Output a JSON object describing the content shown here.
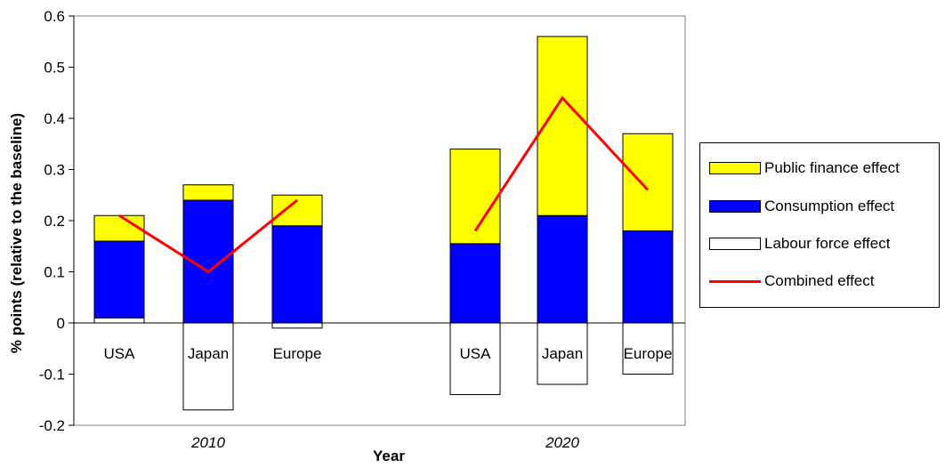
{
  "chart_data": {
    "type": "bar",
    "ylabel": "% points (relative to the baseline)",
    "xlabel": "Year",
    "ylim": [
      -0.2,
      0.6
    ],
    "yticks": [
      "0.6",
      "0.5",
      "0.4",
      "0.3",
      "0.2",
      "0.1",
      "0",
      "-0.1",
      "-0.2"
    ],
    "groups": [
      {
        "label": "2010",
        "categories": [
          "USA",
          "Japan",
          "Europe"
        ]
      },
      {
        "label": "2020",
        "categories": [
          "USA",
          "Japan",
          "Europe"
        ]
      }
    ],
    "series": [
      {
        "name": "Labour force effect",
        "color": "#ffffff",
        "values": [
          0.01,
          -0.17,
          -0.01,
          -0.14,
          -0.12,
          -0.1
        ]
      },
      {
        "name": "Consumption effect",
        "color": "#0000ff",
        "values": [
          0.15,
          0.24,
          0.19,
          0.155,
          0.21,
          0.18
        ]
      },
      {
        "name": "Public finance effect",
        "color": "#ffff00",
        "values": [
          0.05,
          0.03,
          0.06,
          0.185,
          0.35,
          0.19
        ]
      },
      {
        "name": "Combined effect",
        "color": "#ff0000",
        "kind": "line",
        "values": [
          0.21,
          0.1,
          0.24,
          0.18,
          0.44,
          0.26
        ]
      }
    ],
    "legend_order": [
      "Public finance effect",
      "Consumption effect",
      "Labour force effect",
      "Combined effect"
    ],
    "legend_position": "right",
    "grid": false
  }
}
